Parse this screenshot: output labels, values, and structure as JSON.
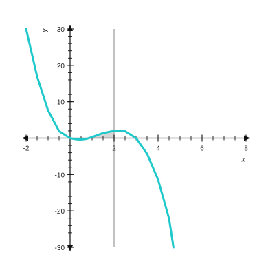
{
  "chart_data": {
    "type": "line",
    "title": "",
    "xlabel": "x",
    "ylabel": "y",
    "xlim": [
      -2,
      8
    ],
    "ylim": [
      -30,
      30
    ],
    "grid": false,
    "x_ticks": [
      -2,
      2,
      4,
      6,
      8
    ],
    "x_tick_labels": [
      "-2",
      "2",
      "4",
      "6",
      "8"
    ],
    "y_ticks": [
      -30,
      -20,
      -10,
      10,
      20,
      30
    ],
    "y_tick_labels": [
      "-30",
      "-20",
      "-10",
      "10",
      "20",
      "30"
    ],
    "x_minor_step": 0.5,
    "y_minor_step": 2,
    "series": [
      {
        "name": "",
        "color": "#1fc9cb",
        "x": [
          -2.0,
          -1.5,
          -1.0,
          -0.5,
          0.0,
          0.25,
          0.5,
          0.75,
          1.0,
          1.5,
          2.0,
          2.3,
          2.5,
          3.0,
          3.5,
          4.0,
          4.5,
          4.7
        ],
        "y": [
          30.0,
          16.9,
          7.6,
          1.9,
          0.0,
          -0.3,
          -0.4,
          -0.2,
          0.3,
          1.4,
          2.0,
          2.1,
          1.9,
          0.0,
          -4.3,
          -11.4,
          -22.1,
          -30.0
        ]
      }
    ],
    "vertical_line": {
      "x": 2,
      "color": "#b3b3b3"
    },
    "shaded_region": {
      "x_from": 0,
      "x_to": 2,
      "color": "#d6d6d6"
    },
    "axis_color": "#111111"
  }
}
